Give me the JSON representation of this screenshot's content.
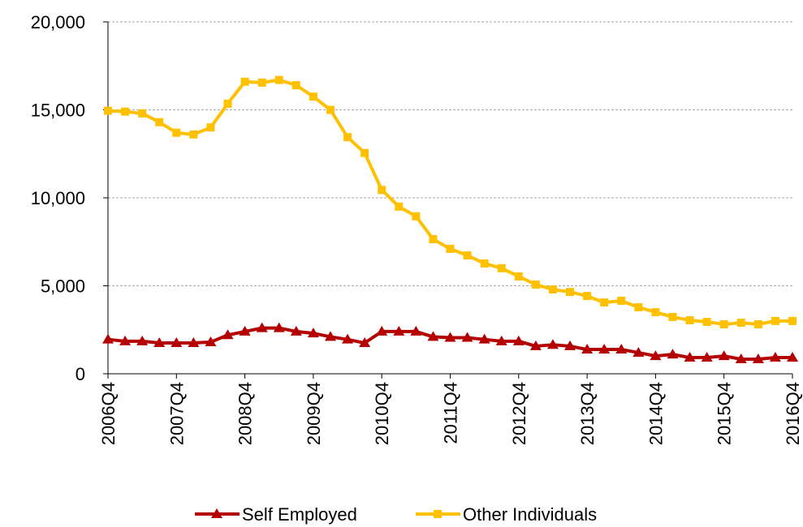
{
  "chart_data": {
    "type": "line",
    "categories": [
      "2006Q4",
      null,
      null,
      null,
      "2007Q4",
      null,
      null,
      null,
      "2008Q4",
      null,
      null,
      null,
      "2009Q4",
      null,
      null,
      null,
      "2010Q4",
      null,
      null,
      null,
      "2011Q4",
      null,
      null,
      null,
      "2012Q4",
      null,
      null,
      null,
      "2013Q4",
      null,
      null,
      null,
      "2014Q4",
      null,
      null,
      null,
      "2015Q4",
      null,
      null,
      null,
      "2016Q4"
    ],
    "series": [
      {
        "name": "Self Employed",
        "color": "#b40000",
        "marker": "triangle",
        "values": [
          1950,
          1850,
          1850,
          1750,
          1750,
          1750,
          1800,
          2200,
          2400,
          2600,
          2600,
          2400,
          2300,
          2100,
          1950,
          1750,
          2400,
          2400,
          2400,
          2100,
          2050,
          2050,
          1950,
          1850,
          1850,
          1570,
          1650,
          1570,
          1380,
          1380,
          1380,
          1200,
          1010,
          1100,
          920,
          920,
          1010,
          830,
          830,
          920,
          920
        ]
      },
      {
        "name": "Other Individuals",
        "color": "#ffc000",
        "marker": "square",
        "values": [
          14950,
          14900,
          14800,
          14300,
          13700,
          13600,
          14000,
          15350,
          16600,
          16550,
          16700,
          16400,
          15750,
          15000,
          13450,
          12550,
          10450,
          9500,
          8950,
          7650,
          7100,
          6730,
          6270,
          6000,
          5530,
          5070,
          4790,
          4650,
          4420,
          4050,
          4150,
          3780,
          3500,
          3230,
          3040,
          2950,
          2810,
          2900,
          2810,
          3000,
          3000
        ]
      }
    ],
    "ylim": [
      0,
      20000
    ],
    "yticks": [
      0,
      {
        "value": 5000,
        "label": "5,000"
      },
      {
        "value": 10000,
        "label": "10,000"
      },
      {
        "value": 15000,
        "label": "15,000"
      },
      {
        "value": 20000,
        "label": "20,000"
      }
    ],
    "grid": true,
    "legend": "bottom"
  }
}
